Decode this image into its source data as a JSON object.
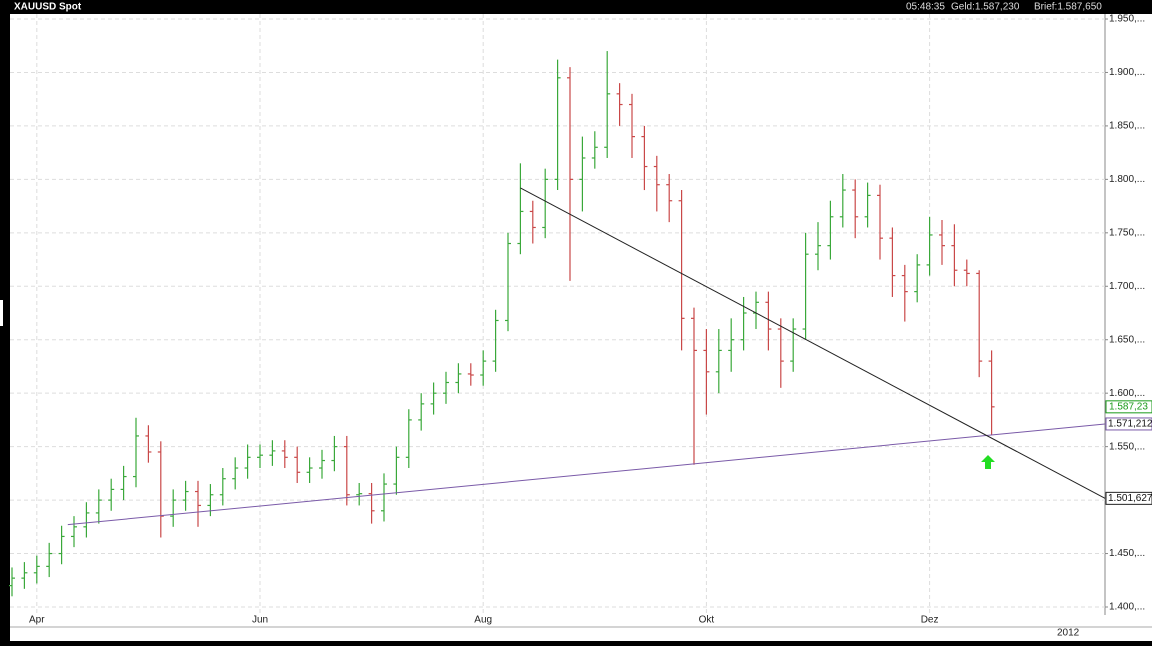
{
  "chart_data": {
    "type": "ohlc",
    "title": "XAUUSD Spot",
    "time": "05:48:35",
    "bid": "Geld:1.587,230",
    "ask": "Brief:1.587,650",
    "year_label": "2012",
    "up_color": "#3aa83a",
    "down_color": "#c94848",
    "categories": [
      null,
      null,
      "Apr",
      null,
      null,
      null,
      null,
      null,
      null,
      null,
      null,
      null,
      null,
      null,
      null,
      null,
      null,
      null,
      null,
      null,
      "Jun",
      null,
      null,
      null,
      null,
      null,
      null,
      null,
      null,
      null,
      null,
      null,
      null,
      null,
      null,
      null,
      null,
      null,
      "Aug",
      null,
      null,
      null,
      null,
      null,
      null,
      null,
      null,
      null,
      null,
      null,
      null,
      null,
      null,
      null,
      null,
      null,
      "Okt",
      null,
      null,
      null,
      null,
      null,
      null,
      null,
      null,
      null,
      null,
      null,
      null,
      null,
      null,
      null,
      null,
      null,
      "Dez",
      null,
      null,
      null,
      null,
      null
    ],
    "open": [
      1.42,
      1.427,
      1.432,
      1.438,
      1.45,
      1.466,
      1.475,
      1.488,
      1.5,
      1.51,
      1.522,
      1.56,
      1.545,
      1.485,
      1.5,
      1.508,
      1.495,
      1.505,
      1.52,
      1.53,
      1.54,
      1.542,
      1.546,
      1.54,
      1.526,
      1.53,
      1.537,
      1.55,
      1.505,
      1.506,
      1.49,
      1.515,
      1.54,
      1.575,
      1.59,
      1.6,
      1.61,
      1.618,
      1.617,
      1.63,
      1.668,
      1.74,
      1.77,
      1.755,
      1.8,
      1.895,
      1.8,
      1.82,
      1.83,
      1.88,
      1.87,
      1.84,
      1.812,
      1.795,
      1.78,
      1.67,
      1.64,
      1.62,
      1.64,
      1.65,
      1.675,
      1.685,
      1.66,
      1.63,
      1.66,
      1.73,
      1.738,
      1.765,
      1.79,
      1.765,
      1.785,
      1.745,
      1.71,
      1.695,
      1.72,
      1.748,
      1.738,
      1.715,
      1.712,
      1.63
    ],
    "high": [
      1.437,
      1.442,
      1.448,
      1.46,
      1.476,
      1.485,
      1.498,
      1.51,
      1.52,
      1.532,
      1.577,
      1.57,
      1.555,
      1.51,
      1.518,
      1.518,
      1.515,
      1.53,
      1.54,
      1.552,
      1.552,
      1.556,
      1.556,
      1.55,
      1.54,
      1.547,
      1.56,
      1.56,
      1.516,
      1.516,
      1.525,
      1.55,
      1.585,
      1.6,
      1.61,
      1.62,
      1.628,
      1.628,
      1.64,
      1.678,
      1.75,
      1.815,
      1.78,
      1.81,
      1.912,
      1.905,
      1.84,
      1.845,
      1.92,
      1.89,
      1.88,
      1.85,
      1.822,
      1.805,
      1.79,
      1.68,
      1.66,
      1.66,
      1.67,
      1.69,
      1.695,
      1.695,
      1.67,
      1.67,
      1.75,
      1.76,
      1.78,
      1.805,
      1.8,
      1.797,
      1.795,
      1.755,
      1.72,
      1.73,
      1.765,
      1.762,
      1.758,
      1.725,
      1.715,
      1.64
    ],
    "low": [
      1.41,
      1.417,
      1.422,
      1.428,
      1.44,
      1.456,
      1.465,
      1.478,
      1.49,
      1.5,
      1.512,
      1.535,
      1.465,
      1.475,
      1.49,
      1.475,
      1.485,
      1.495,
      1.51,
      1.52,
      1.53,
      1.532,
      1.53,
      1.516,
      1.516,
      1.52,
      1.527,
      1.495,
      1.495,
      1.478,
      1.48,
      1.505,
      1.53,
      1.565,
      1.58,
      1.59,
      1.6,
      1.607,
      1.607,
      1.62,
      1.658,
      1.73,
      1.74,
      1.745,
      1.79,
      1.705,
      1.77,
      1.81,
      1.82,
      1.85,
      1.82,
      1.79,
      1.77,
      1.76,
      1.64,
      1.533,
      1.58,
      1.6,
      1.62,
      1.64,
      1.66,
      1.64,
      1.605,
      1.62,
      1.65,
      1.715,
      1.725,
      1.755,
      1.745,
      1.755,
      1.725,
      1.69,
      1.667,
      1.685,
      1.71,
      1.72,
      1.7,
      1.7,
      1.615,
      1.561
    ],
    "close": [
      1.427,
      1.432,
      1.438,
      1.45,
      1.466,
      1.475,
      1.488,
      1.5,
      1.51,
      1.522,
      1.56,
      1.545,
      1.485,
      1.5,
      1.508,
      1.495,
      1.505,
      1.52,
      1.53,
      1.54,
      1.542,
      1.546,
      1.54,
      1.526,
      1.53,
      1.537,
      1.55,
      1.505,
      1.506,
      1.49,
      1.515,
      1.54,
      1.575,
      1.59,
      1.6,
      1.61,
      1.618,
      1.617,
      1.63,
      1.668,
      1.74,
      1.77,
      1.755,
      1.8,
      1.895,
      1.8,
      1.82,
      1.83,
      1.88,
      1.87,
      1.84,
      1.812,
      1.795,
      1.78,
      1.67,
      1.64,
      1.62,
      1.64,
      1.65,
      1.675,
      1.685,
      1.66,
      1.63,
      1.66,
      1.73,
      1.738,
      1.765,
      1.79,
      1.765,
      1.785,
      1.745,
      1.71,
      1.695,
      1.72,
      1.748,
      1.738,
      1.715,
      1.712,
      1.63,
      1.58723
    ],
    "last_label": "1.587,23",
    "last_color": "#1a9a1a",
    "ylim": [
      1.4,
      1.95
    ],
    "yticks": [
      {
        "value": 1.4,
        "label": "1.400,..."
      },
      {
        "value": 1.45,
        "label": "1.450,..."
      },
      {
        "value": 1.5,
        "label": "1.500,..."
      },
      {
        "value": 1.55,
        "label": "1.550,..."
      },
      {
        "value": 1.6,
        "label": "1.600,..."
      },
      {
        "value": 1.65,
        "label": "1.650,..."
      },
      {
        "value": 1.7,
        "label": "1.700,..."
      },
      {
        "value": 1.75,
        "label": "1.750,..."
      },
      {
        "value": 1.8,
        "label": "1.800,..."
      },
      {
        "value": 1.85,
        "label": "1.850,..."
      },
      {
        "value": 1.9,
        "label": "1.900,..."
      },
      {
        "value": 1.95,
        "label": "1.950,..."
      }
    ],
    "grid": true,
    "trendlines": [
      {
        "start_index": 4.5,
        "start_value": 1.477,
        "end_value": 1.571212,
        "end_label": "1.571,212",
        "color": "#7a5aa8"
      },
      {
        "start_index": 41,
        "start_value": 1.792,
        "end_value": 1.501627,
        "end_label": "1.501,627",
        "color": "#222222"
      }
    ]
  }
}
